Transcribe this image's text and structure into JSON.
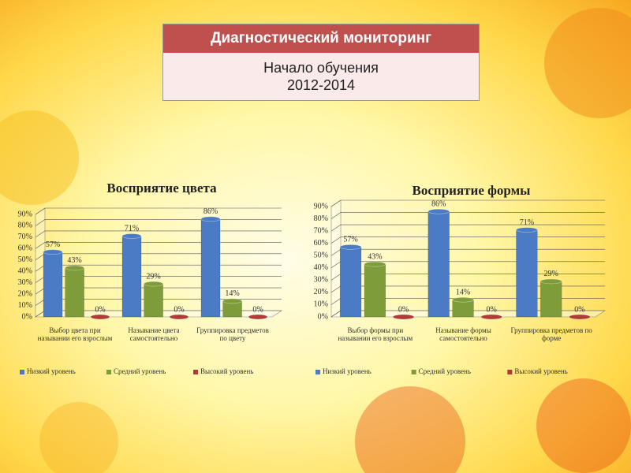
{
  "header": {
    "title": "Диагностический мониторинг",
    "subtitle": "Начало обучения",
    "period": "2012-2014"
  },
  "chart_data": [
    {
      "type": "bar",
      "title": "Восприятие цвета",
      "categories": [
        "Выбор цвета при назывании его взрослым",
        "Называние цвета самостоятельно",
        "Группировка предметов по цвету"
      ],
      "series": [
        {
          "name": "Низкий уровень",
          "color": "#4a7bc4",
          "values": [
            57,
            71,
            86
          ],
          "value_labels": [
            "57%",
            "71%",
            "86%"
          ]
        },
        {
          "name": "Средний уровень",
          "color": "#7f9c3a",
          "values": [
            43,
            29,
            14
          ],
          "value_labels": [
            "43%",
            "29%",
            "14%"
          ]
        },
        {
          "name": "Высокий уровень",
          "color": "#b03a38",
          "values": [
            0,
            0,
            0
          ],
          "value_labels": [
            "0%",
            "0%",
            "0%"
          ]
        }
      ],
      "ylim": [
        0,
        90
      ],
      "yticks": [
        {
          "value": 0,
          "label": "0%"
        },
        {
          "value": 10,
          "label": "10%"
        },
        {
          "value": 20,
          "label": "20%"
        },
        {
          "value": 30,
          "label": "30%"
        },
        {
          "value": 40,
          "label": "40%"
        },
        {
          "value": 50,
          "label": "50%"
        },
        {
          "value": 60,
          "label": "60%"
        },
        {
          "value": 70,
          "label": "70%"
        },
        {
          "value": 80,
          "label": "80%"
        },
        {
          "value": 90,
          "label": "90%"
        }
      ],
      "grid": true,
      "legend": "bottom"
    },
    {
      "type": "bar",
      "title": "Восприятие формы",
      "categories": [
        "Выбор формы при назывании его взрослым",
        "Называние формы самостоятельно",
        "Группировка предметов по форме"
      ],
      "series": [
        {
          "name": "Низкий уровень",
          "color": "#4a7bc4",
          "values": [
            57,
            86,
            71
          ],
          "value_labels": [
            "57%",
            "86%",
            "71%"
          ]
        },
        {
          "name": "Средний уровень",
          "color": "#7f9c3a",
          "values": [
            43,
            14,
            29
          ],
          "value_labels": [
            "43%",
            "14%",
            "29%"
          ]
        },
        {
          "name": "Высокий уровень",
          "color": "#b03a38",
          "values": [
            0,
            0,
            0
          ],
          "value_labels": [
            "0%",
            "0%",
            "0%"
          ]
        }
      ],
      "ylim": [
        0,
        90
      ],
      "yticks": [
        {
          "value": 0,
          "label": "0%"
        },
        {
          "value": 10,
          "label": "10%"
        },
        {
          "value": 20,
          "label": "20%"
        },
        {
          "value": 30,
          "label": "30%"
        },
        {
          "value": 40,
          "label": "40%"
        },
        {
          "value": 50,
          "label": "50%"
        },
        {
          "value": 60,
          "label": "60%"
        },
        {
          "value": 70,
          "label": "70%"
        },
        {
          "value": 80,
          "label": "80%"
        },
        {
          "value": 90,
          "label": "90%"
        }
      ],
      "grid": true,
      "legend": "bottom"
    }
  ]
}
